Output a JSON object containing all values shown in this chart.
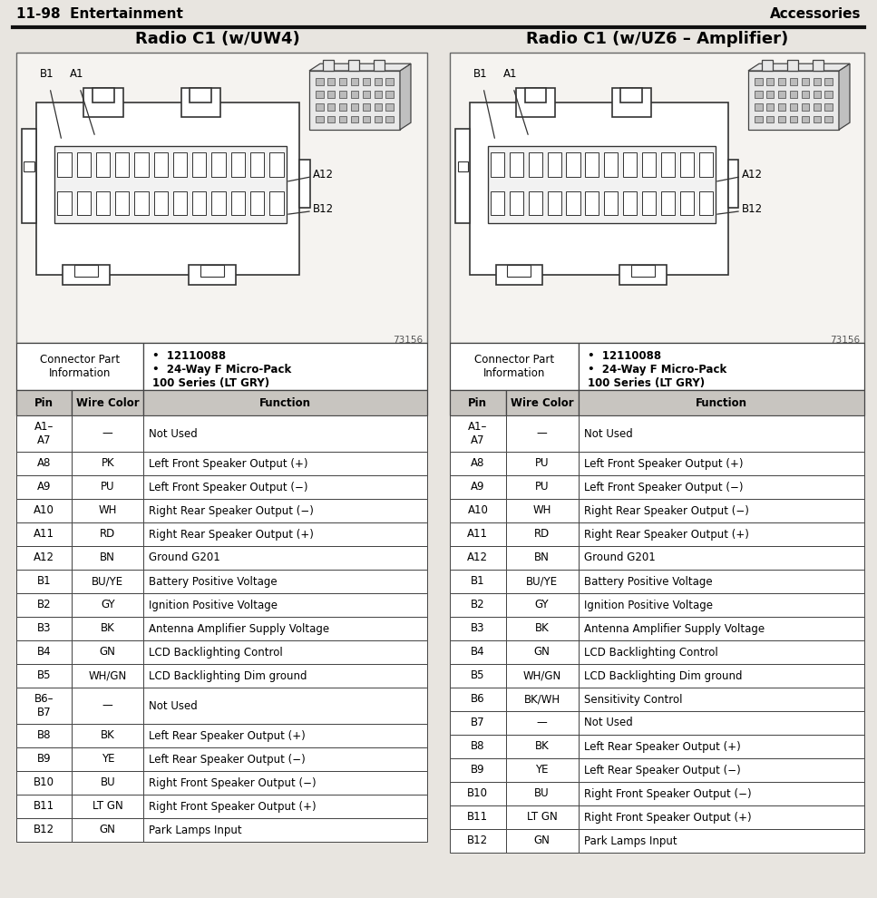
{
  "page_header_left": "11-98  Entertainment",
  "page_header_right": "Accessories",
  "left_title": "Radio C1 (w/UW4)",
  "right_title": "Radio C1 (w/UZ6 – Amplifier)",
  "connector_part_info": "Connector Part\nInformation",
  "bullet1": "12110088",
  "bullet2": "24-Way F Micro-Pack\n100 Series (LT GRY)",
  "diagram_number": "73156",
  "left_table": {
    "headers": [
      "Pin",
      "Wire Color",
      "Function"
    ],
    "rows": [
      [
        "A1–\nA7",
        "—",
        "Not Used"
      ],
      [
        "A8",
        "PK",
        "Left Front Speaker Output (+)"
      ],
      [
        "A9",
        "PU",
        "Left Front Speaker Output (−)"
      ],
      [
        "A10",
        "WH",
        "Right Rear Speaker Output (−)"
      ],
      [
        "A11",
        "RD",
        "Right Rear Speaker Output (+)"
      ],
      [
        "A12",
        "BN",
        "Ground G201"
      ],
      [
        "B1",
        "BU/YE",
        "Battery Positive Voltage"
      ],
      [
        "B2",
        "GY",
        "Ignition Positive Voltage"
      ],
      [
        "B3",
        "BK",
        "Antenna Amplifier Supply Voltage"
      ],
      [
        "B4",
        "GN",
        "LCD Backlighting Control"
      ],
      [
        "B5",
        "WH/GN",
        "LCD Backlighting Dim ground"
      ],
      [
        "B6–\nB7",
        "—",
        "Not Used"
      ],
      [
        "B8",
        "BK",
        "Left Rear Speaker Output (+)"
      ],
      [
        "B9",
        "YE",
        "Left Rear Speaker Output (−)"
      ],
      [
        "B10",
        "BU",
        "Right Front Speaker Output (−)"
      ],
      [
        "B11",
        "LT GN",
        "Right Front Speaker Output (+)"
      ],
      [
        "B12",
        "GN",
        "Park Lamps Input"
      ]
    ]
  },
  "right_table": {
    "headers": [
      "Pin",
      "Wire Color",
      "Function"
    ],
    "rows": [
      [
        "A1–\nA7",
        "—",
        "Not Used"
      ],
      [
        "A8",
        "PU",
        "Left Front Speaker Output (+)"
      ],
      [
        "A9",
        "PU",
        "Left Front Speaker Output (−)"
      ],
      [
        "A10",
        "WH",
        "Right Rear Speaker Output (−)"
      ],
      [
        "A11",
        "RD",
        "Right Rear Speaker Output (+)"
      ],
      [
        "A12",
        "BN",
        "Ground G201"
      ],
      [
        "B1",
        "BU/YE",
        "Battery Positive Voltage"
      ],
      [
        "B2",
        "GY",
        "Ignition Positive Voltage"
      ],
      [
        "B3",
        "BK",
        "Antenna Amplifier Supply Voltage"
      ],
      [
        "B4",
        "GN",
        "LCD Backlighting Control"
      ],
      [
        "B5",
        "WH/GN",
        "LCD Backlighting Dim ground"
      ],
      [
        "B6",
        "BK/WH",
        "Sensitivity Control"
      ],
      [
        "B7",
        "—",
        "Not Used"
      ],
      [
        "B8",
        "BK",
        "Left Rear Speaker Output (+)"
      ],
      [
        "B9",
        "YE",
        "Left Rear Speaker Output (−)"
      ],
      [
        "B10",
        "BU",
        "Right Front Speaker Output (−)"
      ],
      [
        "B11",
        "LT GN",
        "Right Front Speaker Output (+)"
      ],
      [
        "B12",
        "GN",
        "Park Lamps Input"
      ]
    ]
  },
  "bg_color": "#e8e5e0",
  "table_bg": "#ffffff",
  "header_bg": "#c8c5c0",
  "border_color": "#444444",
  "text_color": "#000000",
  "fig_width": 9.67,
  "fig_height": 9.9,
  "dpi": 100
}
